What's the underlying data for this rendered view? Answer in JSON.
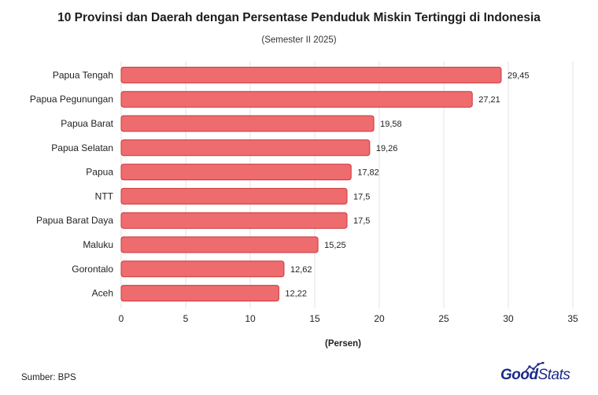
{
  "header": {
    "title": "10 Provinsi dan Daerah dengan Persentase Penduduk Miskin Tertinggi di Indonesia",
    "subtitle": "(Semester II 2025)"
  },
  "footer": {
    "source": "Sumber: BPS",
    "brand_bold": "Good",
    "brand_light": "Stats",
    "brand_icon": "trend-line-icon"
  },
  "colors": {
    "bar_fill": "#ee6b6e",
    "bar_stroke": "#c9383c",
    "grid": "#e3e3e3",
    "brand": "#1b2a8a"
  },
  "chart_data": {
    "type": "bar",
    "orientation": "horizontal",
    "categories": [
      "Papua Tengah",
      "Papua Pegunungan",
      "Papua Barat",
      "Papua Selatan",
      "Papua",
      "NTT",
      "Papua Barat Daya",
      "Maluku",
      "Gorontalo",
      "Aceh"
    ],
    "values": [
      29.45,
      27.21,
      19.58,
      19.26,
      17.82,
      17.5,
      17.5,
      15.25,
      12.62,
      12.22
    ],
    "value_labels": [
      "29,45",
      "27,21",
      "19,58",
      "19,26",
      "17,82",
      "17,5",
      "17,5",
      "15,25",
      "12,62",
      "12,22"
    ],
    "xlabel": "(Persen)",
    "xlim": [
      0,
      35
    ],
    "xticks": [
      0,
      5,
      10,
      15,
      20,
      25,
      30,
      35
    ],
    "grid": true
  }
}
